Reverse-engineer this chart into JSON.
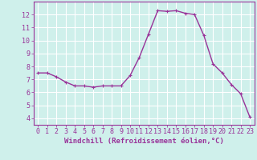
{
  "x": [
    0,
    1,
    2,
    3,
    4,
    5,
    6,
    7,
    8,
    9,
    10,
    11,
    12,
    13,
    14,
    15,
    16,
    17,
    18,
    19,
    20,
    21,
    22,
    23
  ],
  "y": [
    7.5,
    7.5,
    7.2,
    6.8,
    6.5,
    6.5,
    6.4,
    6.5,
    6.5,
    6.5,
    7.3,
    8.7,
    10.5,
    12.3,
    12.25,
    12.3,
    12.1,
    12.0,
    10.4,
    8.2,
    7.5,
    6.6,
    5.9,
    4.1
  ],
  "line_color": "#993399",
  "marker": "+",
  "marker_size": 3,
  "line_width": 1.0,
  "bg_color": "#cff0eb",
  "grid_color": "#ffffff",
  "xlabel": "Windchill (Refroidissement éolien,°C)",
  "xlabel_color": "#993399",
  "tick_color": "#993399",
  "spine_color": "#993399",
  "ylim": [
    3.5,
    13.0
  ],
  "xlim": [
    -0.5,
    23.5
  ],
  "yticks": [
    4,
    5,
    6,
    7,
    8,
    9,
    10,
    11,
    12
  ],
  "xticks": [
    0,
    1,
    2,
    3,
    4,
    5,
    6,
    7,
    8,
    9,
    10,
    11,
    12,
    13,
    14,
    15,
    16,
    17,
    18,
    19,
    20,
    21,
    22,
    23
  ],
  "label_fontsize": 6.5,
  "tick_fontsize": 6.0
}
